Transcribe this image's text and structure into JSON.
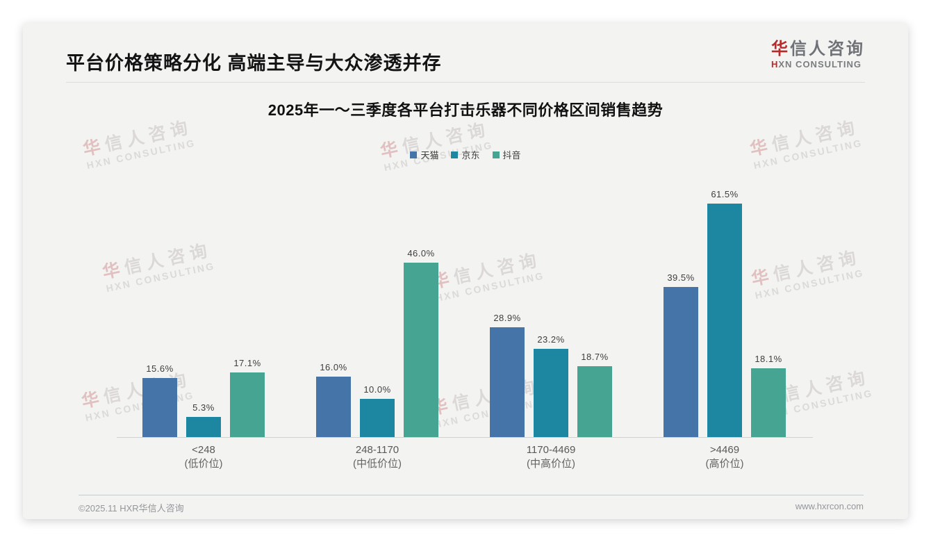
{
  "header": {
    "title": "平台价格策略分化 高端主导与大众渗透并存"
  },
  "logo": {
    "zh_first": "华",
    "zh_rest": "信人咨询",
    "en_first": "H",
    "en_rest": "XN CONSULTING",
    "red_color": "#b8292a"
  },
  "watermark": {
    "zh_first": "华",
    "zh_rest": "信人咨询",
    "en": "HXN CONSULTING"
  },
  "chart_data": {
    "type": "bar",
    "title": "2025年一～三季度各平台打击乐器不同价格区间销售趋势",
    "categories": [
      {
        "range": "<248",
        "tier": "(低价位)"
      },
      {
        "range": "248-1170",
        "tier": "(中低价位)"
      },
      {
        "range": "1170-4469",
        "tier": "(中高价位)"
      },
      {
        "range": ">4469",
        "tier": "(高价位)"
      }
    ],
    "series": [
      {
        "name": "天猫",
        "color": "#4574a8",
        "values": [
          15.6,
          16.0,
          28.9,
          39.5
        ]
      },
      {
        "name": "京东",
        "color": "#1d86a0",
        "values": [
          5.3,
          10.0,
          23.2,
          61.5
        ]
      },
      {
        "name": "抖音",
        "color": "#45a492",
        "values": [
          17.1,
          46.0,
          18.7,
          18.1
        ]
      }
    ],
    "value_suffix": "%",
    "xlabel": "",
    "ylabel": "",
    "ylim": [
      0,
      66
    ],
    "grid": false,
    "legend_position": "top"
  },
  "footer": {
    "left": "©2025.11 HXR华信人咨询",
    "right": "www.hxrcon.com"
  }
}
